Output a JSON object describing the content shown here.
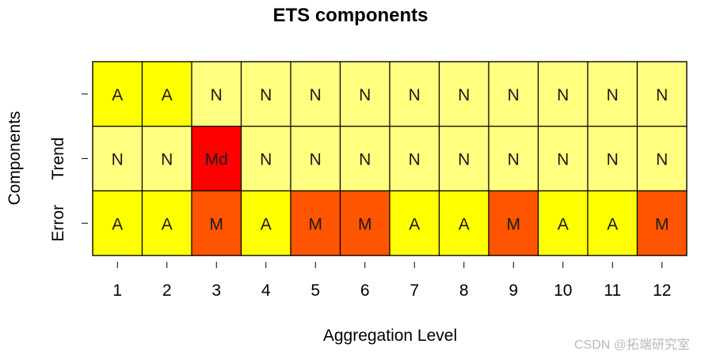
{
  "chart_data": {
    "type": "heatmap",
    "title": "ETS components",
    "xlabel": "Aggregation Level",
    "ylabel": "Components",
    "x": [
      "1",
      "2",
      "3",
      "4",
      "5",
      "6",
      "7",
      "8",
      "9",
      "10",
      "11",
      "12"
    ],
    "rows": [
      {
        "label": "",
        "values": [
          "A",
          "A",
          "N",
          "N",
          "N",
          "N",
          "N",
          "N",
          "N",
          "N",
          "N",
          "N"
        ]
      },
      {
        "label": "Trend",
        "values": [
          "N",
          "N",
          "Md",
          "N",
          "N",
          "N",
          "N",
          "N",
          "N",
          "N",
          "N",
          "N"
        ]
      },
      {
        "label": "Error",
        "values": [
          "A",
          "A",
          "M",
          "A",
          "M",
          "M",
          "A",
          "A",
          "M",
          "A",
          "A",
          "M"
        ]
      }
    ],
    "colors": {
      "A": "#ffff00",
      "N": "#ffff80",
      "Md": "#ff0000",
      "M": "#ff5500"
    },
    "grid": false,
    "legend": "none"
  },
  "watermark": "CSDN @拓端研究室"
}
